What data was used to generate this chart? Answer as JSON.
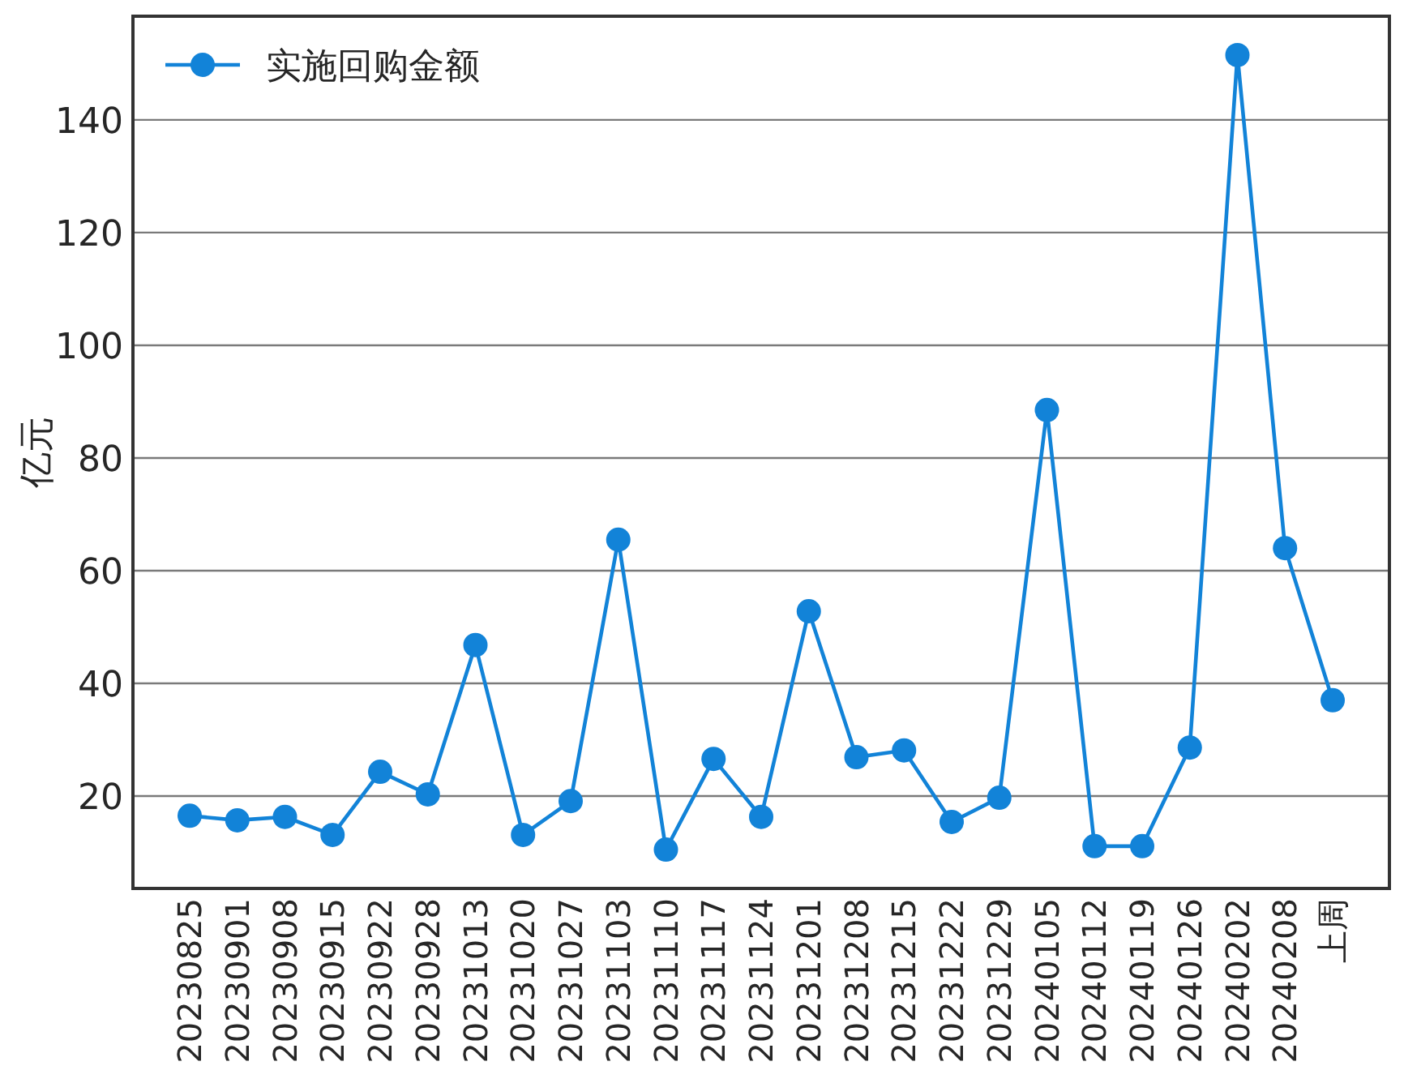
{
  "chart_data": {
    "type": "line",
    "ylabel": "亿元",
    "categories": [
      "20230825",
      "20230901",
      "20230908",
      "20230915",
      "20230922",
      "20230928",
      "20231013",
      "20231020",
      "20231027",
      "20231103",
      "20231110",
      "20231117",
      "20231124",
      "20231201",
      "20231208",
      "20231215",
      "20231222",
      "20231229",
      "20240105",
      "20240112",
      "20240119",
      "20240126",
      "20240202",
      "20240208",
      "上周"
    ],
    "series": [
      {
        "name": "实施回购金额",
        "color": "#1283d8",
        "values": [
          16.5,
          15.7,
          16.3,
          13.1,
          24.3,
          20.3,
          46.8,
          13.1,
          19.1,
          65.5,
          10.5,
          26.6,
          16.3,
          52.8,
          26.9,
          28.1,
          15.4,
          19.7,
          88.5,
          11.1,
          11.1,
          28.6,
          151.5,
          64.0,
          37.0
        ]
      }
    ],
    "ylim": [
      3.6,
      158.4
    ],
    "yticks": [
      20,
      40,
      60,
      80,
      100,
      120,
      140
    ],
    "grid": "y",
    "legend": "top left",
    "marker": "circle",
    "line_style": "solid"
  }
}
